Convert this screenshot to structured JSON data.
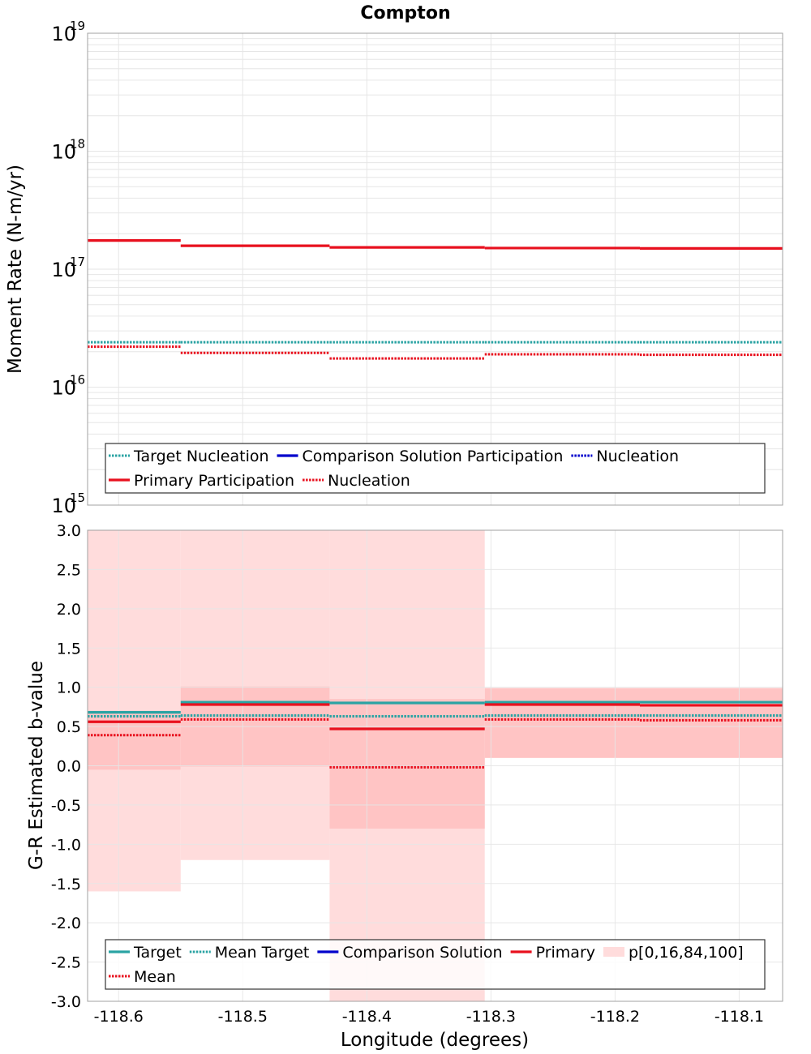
{
  "colors": {
    "target": "#2aa3a3",
    "comparison": "#0000cc",
    "primary": "#e8101e",
    "band_outer": "#ffdcdc",
    "band_inner": "#ffc4c4",
    "grid": "#e6e6e6"
  },
  "chart_data": [
    {
      "id": "moment",
      "type": "line",
      "title": "Compton",
      "ylabel": "Moment Rate (N-m/yr)",
      "yscale": "log",
      "ylim_exp": [
        15,
        19
      ],
      "ytick_labels": [
        {
          "exp": 15,
          "base": "10",
          "sup": "15"
        },
        {
          "exp": 16,
          "base": "10",
          "sup": "16"
        },
        {
          "exp": 17,
          "base": "10",
          "sup": "17"
        },
        {
          "exp": 18,
          "base": "10",
          "sup": "18"
        },
        {
          "exp": 19,
          "base": "10",
          "sup": "19"
        }
      ],
      "bin_edges": [
        -118.625,
        -118.55,
        -118.43,
        -118.305,
        -118.18,
        -118.065
      ],
      "series": [
        {
          "name": "Target Nucleation",
          "style": "dotted",
          "color": "target",
          "values": [
            2.4e+16,
            2.4e+16,
            2.4e+16,
            2.4e+16,
            2.4e+16
          ]
        },
        {
          "name": "Primary Participation",
          "style": "solid",
          "color": "primary",
          "values": [
            1.75e+17,
            1.58e+17,
            1.53e+17,
            1.51e+17,
            1.5e+17
          ]
        },
        {
          "name": "Nucleation",
          "style": "dotted",
          "color": "primary",
          "values": [
            2.2e+16,
            1.95e+16,
            1.75e+16,
            1.9e+16,
            1.88e+16
          ]
        }
      ],
      "legend": {
        "row1": [
          {
            "label": "Target Nucleation",
            "style": "dotted",
            "color": "target"
          },
          {
            "label": "Comparison Solution Participation",
            "style": "solid",
            "color": "comparison"
          },
          {
            "label": "Nucleation",
            "style": "dotted",
            "color": "comparison"
          }
        ],
        "row2": [
          {
            "label": "Primary Participation",
            "style": "solid",
            "color": "primary"
          },
          {
            "label": "Nucleation",
            "style": "dotted",
            "color": "primary"
          }
        ]
      }
    },
    {
      "id": "bvalue",
      "type": "line",
      "ylabel": "G-R Estimated b-value",
      "xlabel": "Longitude (degrees)",
      "ylim": [
        -3.0,
        3.0
      ],
      "yticks": [
        3.0,
        2.5,
        2.0,
        1.5,
        1.0,
        0.5,
        0.0,
        -0.5,
        -1.0,
        -1.5,
        -2.0,
        -2.5,
        -3.0
      ],
      "ytick_labels": [
        "3.0",
        "2.5",
        "2.0",
        "1.5",
        "1.0",
        "0.5",
        "0.0",
        "-0.5",
        "-1.0",
        "-1.5",
        "-2.0",
        "-2.5",
        "-3.0"
      ],
      "xlim": [
        -118.625,
        -118.065
      ],
      "xticks": [
        -118.6,
        -118.5,
        -118.4,
        -118.3,
        -118.2,
        -118.1
      ],
      "xtick_labels": [
        "-118.6",
        "-118.5",
        "-118.4",
        "-118.3",
        "-118.2",
        "-118.1"
      ],
      "bin_edges": [
        -118.625,
        -118.55,
        -118.43,
        -118.305,
        -118.18,
        -118.065
      ],
      "bands": {
        "p0": [
          -1.6,
          -1.2,
          -3.0,
          3.0,
          3.0
        ],
        "p16": [
          -0.05,
          -0.01,
          -0.8,
          0.1,
          0.1
        ],
        "p84": [
          0.7,
          1.01,
          0.85,
          0.99,
          0.99
        ],
        "p100": [
          3.0,
          3.0,
          3.0,
          3.0,
          3.0
        ]
      },
      "series": [
        {
          "name": "Target",
          "style": "solid",
          "color": "target",
          "values": [
            0.68,
            0.81,
            0.8,
            0.81,
            0.81
          ]
        },
        {
          "name": "Mean Target",
          "style": "dotted",
          "color": "target",
          "values": [
            0.63,
            0.64,
            0.63,
            0.64,
            0.64
          ]
        },
        {
          "name": "Primary",
          "style": "solid",
          "color": "primary",
          "values": [
            0.56,
            0.78,
            0.47,
            0.78,
            0.77
          ]
        },
        {
          "name": "Mean",
          "style": "dotted",
          "color": "primary",
          "values": [
            0.39,
            0.59,
            -0.02,
            0.59,
            0.58
          ]
        }
      ],
      "legend": {
        "row1": [
          {
            "label": "Target",
            "style": "solid",
            "color": "target"
          },
          {
            "label": "Mean Target",
            "style": "dotted",
            "color": "target"
          },
          {
            "label": "Comparison Solution",
            "style": "solid",
            "color": "comparison"
          },
          {
            "label": "Primary",
            "style": "solid",
            "color": "primary"
          },
          {
            "label": "p[0,16,84,100]",
            "style": "box",
            "color": "band_outer"
          }
        ],
        "row2": [
          {
            "label": "Mean",
            "style": "dotted",
            "color": "primary"
          }
        ]
      }
    }
  ]
}
